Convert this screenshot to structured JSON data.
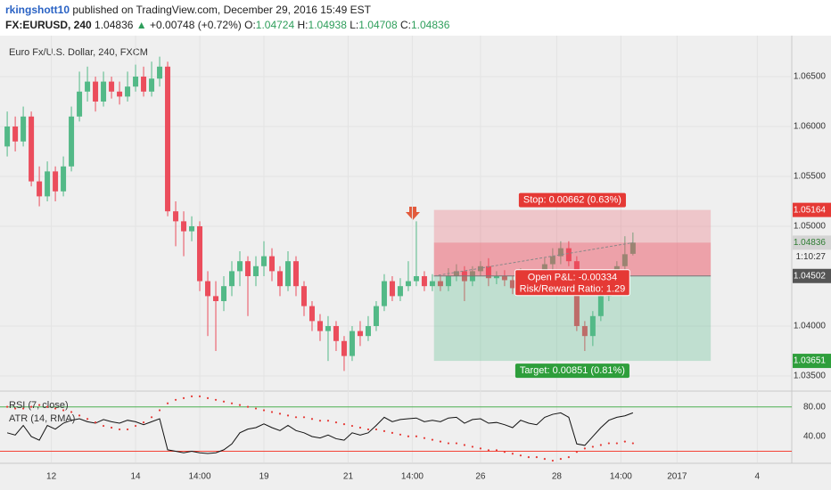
{
  "header": {
    "author": "rkingshott10",
    "published": "published on TradingView.com, December 29, 2016 15:49 EST",
    "symbol": "FX:EURUSD, 240",
    "arrow": "▲",
    "change": "+0.00748 (+0.72%)",
    "ohlc_labels": [
      "O:",
      "H:",
      "L:",
      "C:"
    ]
  },
  "chart_data": [
    {
      "type": "candlestick",
      "title": "Euro Fx/U.S. Dollar, 240, FXCM",
      "open": [
        1.058,
        1.06,
        1.0585,
        1.061,
        1.0545,
        1.053,
        1.0555,
        1.0535,
        1.056,
        1.061,
        1.0635,
        1.0645,
        1.0625,
        1.0645,
        1.0635,
        1.063,
        1.064,
        1.065,
        1.0635,
        1.0648,
        1.066,
        1.0515,
        1.0505,
        1.0495,
        1.05,
        1.0445,
        1.043,
        1.0425,
        1.044,
        1.0455,
        1.0465,
        1.045,
        1.046,
        1.047,
        1.0455,
        1.044,
        1.0465,
        1.044,
        1.042,
        1.0405,
        1.0395,
        1.04,
        1.0385,
        1.037,
        1.0395,
        1.039,
        1.04,
        1.042,
        1.0445,
        1.043,
        1.044,
        1.0445,
        1.045,
        1.044,
        1.0445,
        1.044,
        1.045,
        1.0455,
        1.0445,
        1.0455,
        1.046,
        1.0448,
        1.045,
        1.0446,
        1.0438,
        1.0452,
        1.0445,
        1.044,
        1.0462,
        1.047,
        1.0478,
        1.0465,
        1.04,
        1.039,
        1.041,
        1.043,
        1.045,
        1.046,
        1.04724
      ],
      "high": [
        1.0615,
        1.061,
        1.062,
        1.0615,
        1.056,
        1.0565,
        1.056,
        1.057,
        1.062,
        1.0655,
        1.066,
        1.065,
        1.0655,
        1.065,
        1.0645,
        1.0655,
        1.0662,
        1.066,
        1.0665,
        1.067,
        1.0665,
        1.0525,
        1.0515,
        1.051,
        1.0505,
        1.0455,
        1.0445,
        1.045,
        1.0465,
        1.0475,
        1.047,
        1.047,
        1.0485,
        1.0478,
        1.046,
        1.0475,
        1.047,
        1.0445,
        1.0425,
        1.0412,
        1.041,
        1.0405,
        1.039,
        1.04,
        1.0405,
        1.041,
        1.0425,
        1.0452,
        1.045,
        1.0448,
        1.0465,
        1.0505,
        1.0455,
        1.0452,
        1.045,
        1.0458,
        1.0462,
        1.046,
        1.046,
        1.0465,
        1.0468,
        1.0455,
        1.0456,
        1.045,
        1.0458,
        1.0455,
        1.045,
        1.0468,
        1.0478,
        1.0485,
        1.0485,
        1.047,
        1.0405,
        1.0415,
        1.0435,
        1.0455,
        1.0465,
        1.049,
        1.04938
      ],
      "low": [
        1.057,
        1.0575,
        1.058,
        1.054,
        1.052,
        1.0525,
        1.0525,
        1.053,
        1.0555,
        1.0605,
        1.0625,
        1.0615,
        1.062,
        1.0628,
        1.0622,
        1.0625,
        1.0635,
        1.063,
        1.063,
        1.064,
        1.051,
        1.048,
        1.047,
        1.0485,
        1.0435,
        1.039,
        1.0375,
        1.0415,
        1.043,
        1.044,
        1.041,
        1.044,
        1.045,
        1.0445,
        1.043,
        1.0435,
        1.043,
        1.041,
        1.0395,
        1.0385,
        1.0365,
        1.0375,
        1.0355,
        1.0365,
        1.038,
        1.0385,
        1.0395,
        1.0415,
        1.0425,
        1.0425,
        1.0435,
        1.044,
        1.0435,
        1.0435,
        1.0435,
        1.0435,
        1.0445,
        1.0425,
        1.044,
        1.045,
        1.044,
        1.0442,
        1.044,
        1.0432,
        1.0435,
        1.044,
        1.0435,
        1.0438,
        1.0455,
        1.0462,
        1.046,
        1.0395,
        1.0375,
        1.038,
        1.0405,
        1.0425,
        1.0445,
        1.0455,
        1.04708
      ],
      "close": [
        1.06,
        1.0585,
        1.061,
        1.0545,
        1.053,
        1.0555,
        1.0535,
        1.056,
        1.061,
        1.0635,
        1.0645,
        1.0625,
        1.0645,
        1.0635,
        1.063,
        1.064,
        1.065,
        1.0635,
        1.0648,
        1.066,
        1.0515,
        1.0505,
        1.0495,
        1.05,
        1.0445,
        1.043,
        1.0425,
        1.044,
        1.0455,
        1.0465,
        1.045,
        1.046,
        1.047,
        1.0455,
        1.044,
        1.0465,
        1.044,
        1.042,
        1.0405,
        1.0395,
        1.04,
        1.0385,
        1.037,
        1.0395,
        1.039,
        1.04,
        1.042,
        1.0445,
        1.043,
        1.044,
        1.0445,
        1.045,
        1.044,
        1.0445,
        1.044,
        1.045,
        1.0455,
        1.0445,
        1.0455,
        1.046,
        1.0448,
        1.045,
        1.0446,
        1.0438,
        1.0452,
        1.0445,
        1.044,
        1.0462,
        1.047,
        1.0478,
        1.0465,
        1.04,
        1.039,
        1.041,
        1.043,
        1.045,
        1.046,
        1.0472,
        1.04836
      ],
      "up_color": "#53b987",
      "down_color": "#eb4d5c",
      "ylim": [
        1.03357,
        1.06866
      ],
      "yticks": [
        {
          "value": 1.035,
          "label": "1.03500"
        },
        {
          "value": 1.04,
          "label": "1.04000"
        },
        {
          "value": 1.05,
          "label": "1.05000"
        },
        {
          "value": 1.055,
          "label": "1.05500"
        },
        {
          "value": 1.06,
          "label": "1.06000"
        },
        {
          "value": 1.065,
          "label": "1.06500"
        }
      ],
      "xlim": [
        -0.9,
        97.8
      ],
      "xticks": [
        {
          "value": 5.5,
          "label": "12"
        },
        {
          "value": 16,
          "label": "14"
        },
        {
          "value": 24,
          "label": "14:00"
        },
        {
          "value": 32,
          "label": "19"
        },
        {
          "value": 42.5,
          "label": "21"
        },
        {
          "value": 50.5,
          "label": "14:00"
        },
        {
          "value": 59,
          "label": "26"
        },
        {
          "value": 68.5,
          "label": "28"
        },
        {
          "value": 76.5,
          "label": "14:00"
        },
        {
          "value": 83.5,
          "label": "2017"
        },
        {
          "value": 93.5,
          "label": "4"
        }
      ],
      "grid": true,
      "position": {
        "entry": 1.04502,
        "stop": 1.05164,
        "target": 1.03651,
        "start": 53.2,
        "end": 87.7,
        "stop_label": "Stop: 0.00662 (0.63%)",
        "pnl_label": "Open P&L: -0.00334",
        "rr_label": "Risk/Reward Ratio: 1.29",
        "target_label": "Target: 0.00851 (0.81%)"
      },
      "countdown": "1:10:27"
    },
    {
      "type": "line",
      "series": [
        {
          "name": "RSI (7, close)",
          "color": "#111111",
          "values": [
            45,
            42,
            55,
            40,
            35,
            55,
            50,
            58,
            62,
            64,
            60,
            58,
            63,
            60,
            58,
            62,
            60,
            56,
            60,
            64,
            22,
            20,
            18,
            20,
            18,
            17,
            18,
            22,
            30,
            45,
            50,
            52,
            57,
            52,
            48,
            55,
            48,
            45,
            40,
            38,
            42,
            37,
            35,
            45,
            42,
            45,
            55,
            66,
            60,
            63,
            64,
            65,
            60,
            62,
            60,
            65,
            66,
            58,
            63,
            64,
            58,
            59,
            56,
            52,
            62,
            58,
            56,
            66,
            70,
            72,
            66,
            30,
            28,
            40,
            52,
            62,
            66,
            68,
            72
          ]
        },
        {
          "name": "ATR (14, RMA)",
          "color": "#e53935",
          "style": "dots",
          "axis": "y2",
          "values": [
            0.0042,
            0.0041,
            0.0041,
            0.0042,
            0.0043,
            0.0042,
            0.0041,
            0.004,
            0.0039,
            0.0037,
            0.0035,
            0.0033,
            0.0031,
            0.003,
            0.0029,
            0.0029,
            0.0031,
            0.0033,
            0.0036,
            0.004,
            0.0044,
            0.0046,
            0.0047,
            0.0048,
            0.0048,
            0.0047,
            0.0046,
            0.0045,
            0.0044,
            0.0043,
            0.0042,
            0.0041,
            0.004,
            0.0039,
            0.0038,
            0.0037,
            0.0036,
            0.0036,
            0.0035,
            0.0034,
            0.0034,
            0.0033,
            0.0032,
            0.0031,
            0.003,
            0.0029,
            0.0029,
            0.0028,
            0.0027,
            0.0026,
            0.0025,
            0.0025,
            0.0024,
            0.0023,
            0.0022,
            0.0021,
            0.0021,
            0.002,
            0.0019,
            0.0018,
            0.0017,
            0.0017,
            0.0016,
            0.0015,
            0.0014,
            0.0013,
            0.0013,
            0.0012,
            0.0011,
            0.0012,
            0.0013,
            0.0016,
            0.0018,
            0.0019,
            0.002,
            0.0021,
            0.0021,
            0.0022,
            0.0021
          ]
        }
      ],
      "ylim": [
        5,
        99
      ],
      "y2lim": [
        0.001,
        0.005
      ],
      "yticks": [
        {
          "value": 40,
          "label": "40.00"
        },
        {
          "value": 80,
          "label": "80.00"
        }
      ],
      "levels": [
        {
          "value": 80,
          "color": "#4caf50"
        },
        {
          "value": 20,
          "color": "#f44336"
        }
      ]
    }
  ]
}
